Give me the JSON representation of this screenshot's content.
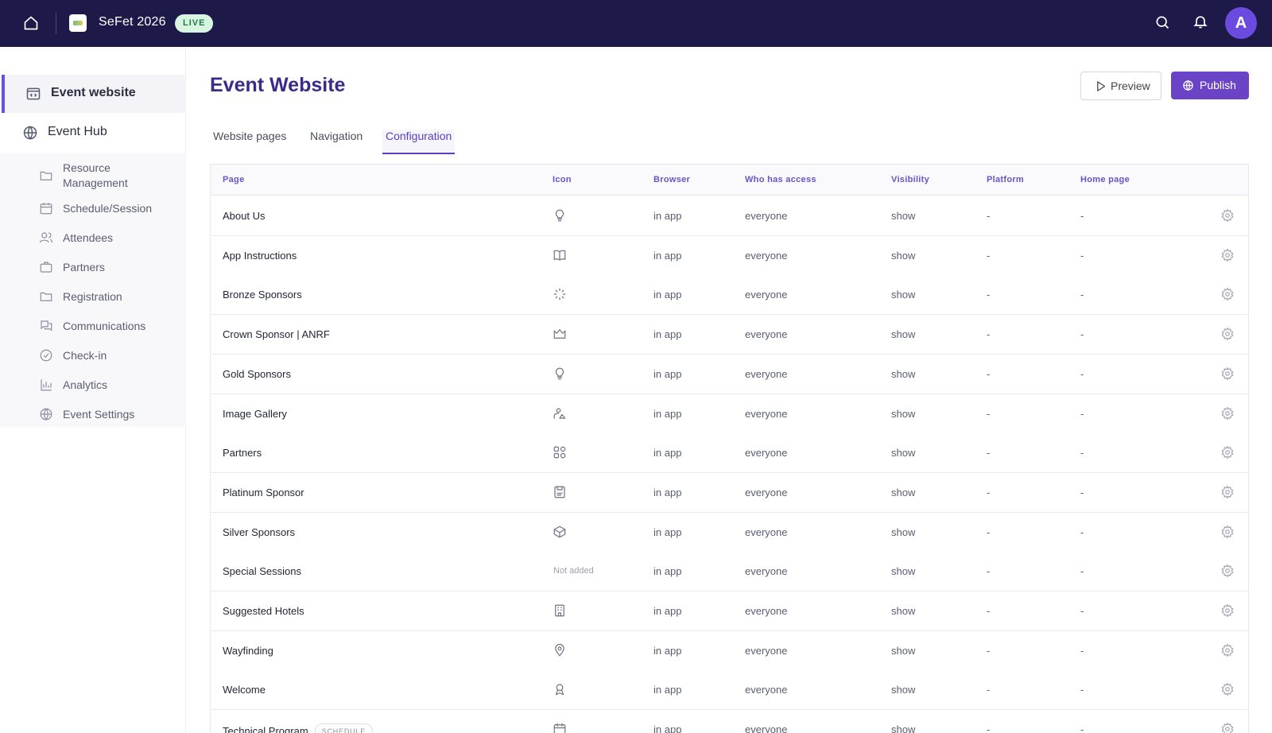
{
  "topbar": {
    "event_name": "SeFet 2026",
    "status_badge": "LIVE",
    "avatar_initial": "A"
  },
  "sidebar": {
    "active_item": "Event website",
    "hub_item": "Event Hub",
    "sub_items": [
      {
        "label": "Resource Management",
        "icon": "folder-icon"
      },
      {
        "label": "Schedule/Session",
        "icon": "calendar-icon"
      },
      {
        "label": "Attendees",
        "icon": "users-icon"
      },
      {
        "label": "Partners",
        "icon": "briefcase-icon"
      },
      {
        "label": "Registration",
        "icon": "folder-icon"
      },
      {
        "label": "Communications",
        "icon": "chat-icon"
      },
      {
        "label": "Check-in",
        "icon": "check-circle-icon"
      },
      {
        "label": "Analytics",
        "icon": "bar-chart-icon"
      },
      {
        "label": "Event Settings",
        "icon": "globe-icon"
      }
    ]
  },
  "main": {
    "title": "Event Website",
    "preview_label": "Preview",
    "publish_label": "Publish",
    "tabs": [
      {
        "label": "Website pages",
        "active": false
      },
      {
        "label": "Navigation",
        "active": false
      },
      {
        "label": "Configuration",
        "active": true
      }
    ]
  },
  "table": {
    "columns": [
      "Page",
      "Icon",
      "Browser",
      "Who has access",
      "Visibility",
      "Platform",
      "Home page"
    ],
    "rows": [
      {
        "page": "About Us",
        "icon": "lightbulb-icon",
        "browser": "in app",
        "access": "everyone",
        "visibility": "show",
        "platform": "-",
        "home": "-"
      },
      {
        "page": "App Instructions",
        "icon": "book-open-icon",
        "browser": "in app",
        "access": "everyone",
        "visibility": "show",
        "platform": "-",
        "home": "-"
      },
      {
        "page": "Bronze Sponsors",
        "icon": "loader-icon",
        "browser": "in app",
        "access": "everyone",
        "visibility": "show",
        "platform": "-",
        "home": "-"
      },
      {
        "page": "Crown Sponsor | ANRF",
        "icon": "crown-icon",
        "browser": "in app",
        "access": "everyone",
        "visibility": "show",
        "platform": "-",
        "home": "-"
      },
      {
        "page": "Gold Sponsors",
        "icon": "lightbulb-icon",
        "browser": "in app",
        "access": "everyone",
        "visibility": "show",
        "platform": "-",
        "home": "-"
      },
      {
        "page": "Image Gallery",
        "icon": "image-user-icon",
        "browser": "in app",
        "access": "everyone",
        "visibility": "show",
        "platform": "-",
        "home": "-"
      },
      {
        "page": "Partners",
        "icon": "grid-shapes-icon",
        "browser": "in app",
        "access": "everyone",
        "visibility": "show",
        "platform": "-",
        "home": "-"
      },
      {
        "page": "Platinum Sponsor",
        "icon": "save-icon",
        "browser": "in app",
        "access": "everyone",
        "visibility": "show",
        "platform": "-",
        "home": "-"
      },
      {
        "page": "Silver Sponsors",
        "icon": "box-icon",
        "browser": "in app",
        "access": "everyone",
        "visibility": "show",
        "platform": "-",
        "home": "-"
      },
      {
        "page": "Special Sessions",
        "icon": "",
        "icon_text": "Not added",
        "browser": "in app",
        "access": "everyone",
        "visibility": "show",
        "platform": "-",
        "home": "-"
      },
      {
        "page": "Suggested Hotels",
        "icon": "building-icon",
        "browser": "in app",
        "access": "everyone",
        "visibility": "show",
        "platform": "-",
        "home": "-"
      },
      {
        "page": "Wayfinding",
        "icon": "map-pin-icon",
        "browser": "in app",
        "access": "everyone",
        "visibility": "show",
        "platform": "-",
        "home": "-"
      },
      {
        "page": "Welcome",
        "icon": "award-icon",
        "browser": "in app",
        "access": "everyone",
        "visibility": "show",
        "platform": "-",
        "home": "-"
      },
      {
        "page": "Technical Program",
        "badge": "SCHEDULE",
        "icon": "calendar-icon",
        "browser": "in app",
        "access": "everyone",
        "visibility": "show",
        "platform": "-",
        "home": "-"
      }
    ]
  },
  "colors": {
    "topbar_bg": "#1d1a4a",
    "accent": "#6a43c7",
    "live_badge_bg": "#d8f5e1"
  }
}
